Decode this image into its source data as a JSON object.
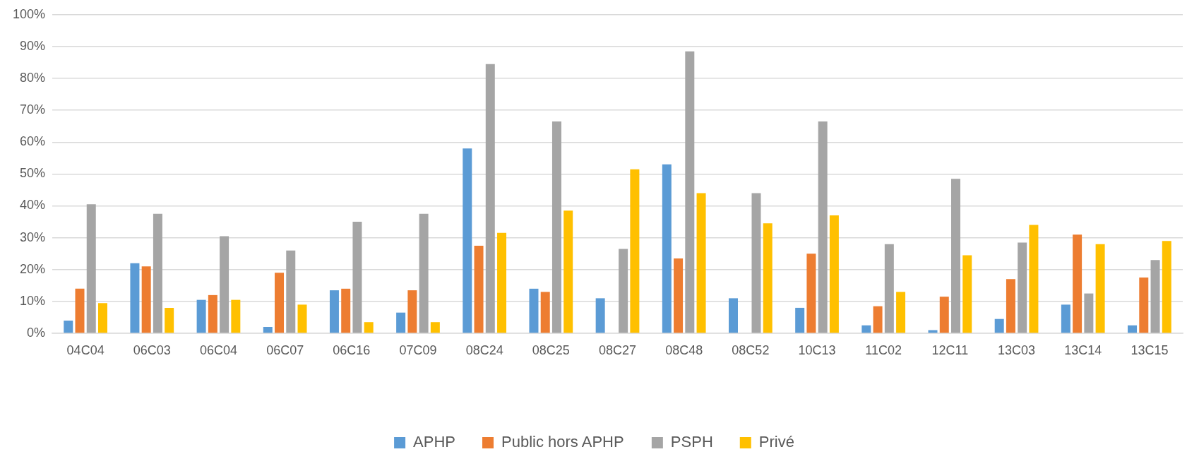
{
  "chart_data": {
    "type": "bar",
    "categories": [
      "04C04",
      "06C03",
      "06C04",
      "06C07",
      "06C16",
      "07C09",
      "08C24",
      "08C25",
      "08C27",
      "08C48",
      "08C52",
      "10C13",
      "11C02",
      "12C11",
      "13C03",
      "13C14",
      "13C15"
    ],
    "series": [
      {
        "name": "APHP",
        "color": "#5b9bd5",
        "values": [
          4,
          22,
          10.5,
          2,
          13.5,
          6.5,
          58,
          14,
          11,
          53,
          11,
          8,
          2.5,
          1,
          4.5,
          9,
          2.5
        ]
      },
      {
        "name": "Public hors APHP",
        "color": "#ed7d31",
        "values": [
          14,
          21,
          12,
          19,
          14,
          13.5,
          27.5,
          13,
          null,
          23.5,
          0,
          25,
          8.5,
          11.5,
          17,
          31,
          17.5
        ]
      },
      {
        "name": "PSPH",
        "color": "#a5a5a5",
        "values": [
          40.5,
          37.5,
          30.5,
          26,
          35,
          37.5,
          84.5,
          66.5,
          26.5,
          88.5,
          44,
          66.5,
          28,
          48.5,
          28.5,
          12.5,
          23
        ]
      },
      {
        "name": "Privé",
        "color": "#ffc000",
        "values": [
          9.5,
          8,
          10.5,
          9,
          3.5,
          3.5,
          31.5,
          38.5,
          51.5,
          44,
          34.5,
          37,
          13,
          24.5,
          34,
          28,
          29
        ]
      }
    ],
    "ylim": [
      0,
      100
    ],
    "yticks": [
      {
        "value": 0,
        "label": "0%"
      },
      {
        "value": 10,
        "label": "10%"
      },
      {
        "value": 20,
        "label": "20%"
      },
      {
        "value": 30,
        "label": "30%"
      },
      {
        "value": 40,
        "label": "40%"
      },
      {
        "value": 50,
        "label": "50%"
      },
      {
        "value": 60,
        "label": "60%"
      },
      {
        "value": 70,
        "label": "70%"
      },
      {
        "value": 80,
        "label": "80%"
      },
      {
        "value": 90,
        "label": "90%"
      },
      {
        "value": 100,
        "label": "100%"
      }
    ],
    "grid": "y",
    "legend": "bottom"
  }
}
